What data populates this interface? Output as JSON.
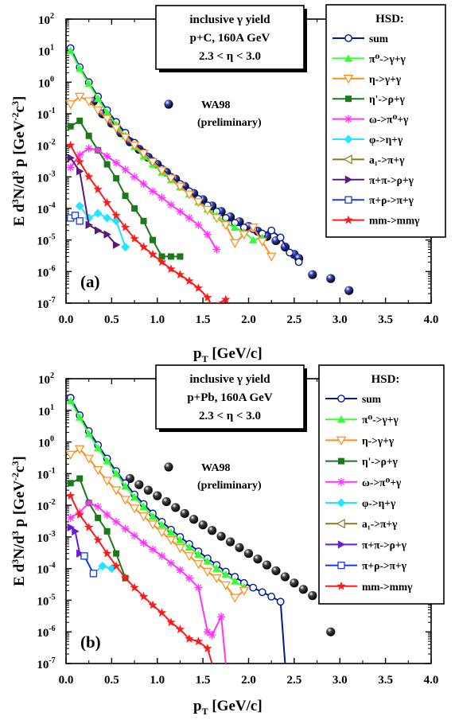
{
  "figure": {
    "x_axis": {
      "label_main": "p",
      "label_sub": "T",
      "label_unit": " [GeV/c]",
      "ticks": [
        "0.0",
        "0.5",
        "1.0",
        "1.5",
        "2.0",
        "2.5",
        "3.0",
        "3.5",
        "4.0"
      ]
    },
    "y_axis": {
      "label_left": "E d",
      "label_mid1": "N/d",
      "label_mid2": " p  [GeV",
      "label_end": "c",
      "sup_3": "3",
      "sup_m2": "-2",
      "sup_c3": "3"
    },
    "legend_title": "HSD:",
    "data_label": {
      "line1": "WA98",
      "line2": "(preliminary)"
    },
    "reaction_box_line1": "inclusive γ yield",
    "reaction_box_line3": "2.3 < η < 3.0"
  },
  "chart_data": [
    {
      "type": "line",
      "panel_label": "(a)",
      "reaction": "p+C,  160A GeV",
      "xlim": [
        0,
        4
      ],
      "ylim_log10": [
        -7,
        2
      ],
      "scatter_series": {
        "name": "WA98",
        "color": "#2a3490",
        "points": [
          [
            0.3,
            0.25
          ],
          [
            0.4,
            0.1
          ],
          [
            0.5,
            0.05
          ],
          [
            0.6,
            0.025
          ],
          [
            0.7,
            0.013
          ],
          [
            0.8,
            0.0075
          ],
          [
            0.9,
            0.0042
          ],
          [
            1.0,
            0.0025
          ],
          [
            1.1,
            0.0014
          ],
          [
            1.2,
            0.00085
          ],
          [
            1.3,
            0.0005
          ],
          [
            1.4,
            0.0003
          ],
          [
            1.5,
            0.00019
          ],
          [
            1.6,
            0.00012
          ],
          [
            1.7,
            8e-05
          ],
          [
            1.8,
            5.4e-05
          ],
          [
            1.9,
            3.8e-05
          ],
          [
            2.0,
            2.7e-05
          ],
          [
            2.1,
            1.9e-05
          ],
          [
            2.2,
            1.3e-05
          ],
          [
            2.3,
            9.5e-06
          ],
          [
            2.4,
            6e-06
          ],
          [
            2.5,
            3.5e-06
          ],
          [
            2.55,
            2.6e-06
          ],
          [
            2.7,
            8e-07
          ],
          [
            2.9,
            6e-07
          ],
          [
            3.1,
            2.5e-07
          ]
        ]
      },
      "series": [
        {
          "name": "sum",
          "color": "#001a99",
          "marker": "circle-open",
          "x": [
            0.05,
            0.15,
            0.25,
            0.35,
            0.45,
            0.55,
            0.65,
            0.75,
            0.85,
            0.95,
            1.05,
            1.15,
            1.25,
            1.35,
            1.45,
            1.55,
            1.65,
            1.75,
            1.85,
            1.95,
            2.05,
            2.15,
            2.25,
            2.35,
            2.45,
            2.55
          ],
          "y": [
            12,
            3.0,
            1.0,
            0.35,
            0.13,
            0.055,
            0.025,
            0.012,
            0.006,
            0.0032,
            0.0018,
            0.001,
            0.0006,
            0.00035,
            0.0002,
            0.000125,
            8e-05,
            5e-05,
            3.5e-05,
            2.5e-05,
            2.2e-05,
            1.6e-05,
            2e-05,
            1.2e-05,
            4e-06,
            2e-06
          ]
        },
        {
          "name": "π⁰->γ+γ",
          "color": "#33ff33",
          "marker": "triangle-up",
          "x": [
            0.05,
            0.15,
            0.25,
            0.35,
            0.45,
            0.55,
            0.65,
            0.75,
            0.85,
            0.95,
            1.05,
            1.15,
            1.25,
            1.35,
            1.45,
            1.55,
            1.65,
            1.75,
            1.85,
            1.95,
            2.05,
            2.15
          ],
          "y": [
            10,
            2.7,
            0.9,
            0.3,
            0.11,
            0.045,
            0.02,
            0.009,
            0.0045,
            0.0025,
            0.0014,
            0.0008,
            0.00048,
            0.00028,
            0.00016,
            9.5e-05,
            6e-05,
            3.5e-05,
            2.5e-05,
            1.8e-05,
            1e-05,
            1.2e-05
          ]
        },
        {
          "name": "η->γ+γ",
          "color": "#ff8c1a",
          "marker": "triangle-down-open",
          "x": [
            0.05,
            0.15,
            0.25,
            0.35,
            0.45,
            0.55,
            0.65,
            0.75,
            0.85,
            0.95,
            1.05,
            1.15,
            1.25,
            1.35,
            1.45,
            1.55,
            1.65,
            1.75,
            1.85,
            1.95,
            2.05,
            2.15,
            2.25
          ],
          "y": [
            0.2,
            0.35,
            0.25,
            0.13,
            0.07,
            0.035,
            0.018,
            0.01,
            0.0055,
            0.003,
            0.0016,
            0.0009,
            0.0005,
            0.00028,
            0.00016,
            9e-05,
            5e-05,
            3e-05,
            8e-06,
            1.5e-05,
            2.5e-05,
            9e-06,
            3e-06
          ]
        },
        {
          "name": "η'->ρ+γ",
          "color": "#1a7a1a",
          "marker": "square",
          "x": [
            0.05,
            0.15,
            0.25,
            0.35,
            0.45,
            0.55,
            0.65,
            0.75,
            0.85,
            0.95,
            1.05,
            1.15,
            1.25
          ],
          "y": [
            0.04,
            0.06,
            0.02,
            0.007,
            0.0025,
            0.0009,
            0.00025,
            0.0001,
            4e-05,
            1e-05,
            3e-06,
            3e-06,
            3e-06
          ]
        },
        {
          "name": "ω->π⁰+γ",
          "color": "#ff33ff",
          "marker": "asterisk",
          "x": [
            0.05,
            0.15,
            0.25,
            0.35,
            0.45,
            0.55,
            0.65,
            0.75,
            0.85,
            0.95,
            1.05,
            1.15,
            1.25,
            1.35,
            1.45,
            1.55,
            1.65
          ],
          "y": [
            0.002,
            0.005,
            0.008,
            0.007,
            0.0045,
            0.0028,
            0.0017,
            0.001,
            0.0006,
            0.00035,
            0.00022,
            0.00013,
            8e-05,
            5e-05,
            3e-05,
            1.5e-05,
            5e-06
          ]
        },
        {
          "name": "φ->η+γ",
          "color": "#22e5ff",
          "marker": "diamond",
          "x": [
            0.15,
            0.25,
            0.35,
            0.45,
            0.55,
            0.65
          ],
          "y": [
            0.00012,
            5e-05,
            7e-05,
            5e-05,
            4e-05,
            6e-06
          ]
        },
        {
          "name": "a₁->π+γ",
          "color": "#8c7a1a",
          "marker": "triangle-left-open",
          "x": [],
          "y": []
        },
        {
          "name": "π+π->ρ+γ",
          "color": "#5a1a7a",
          "marker": "triangle-right",
          "x": [
            0.05,
            0.15,
            0.25,
            0.35,
            0.45,
            0.55
          ],
          "y": [
            0.004,
            0.0015,
            3e-05,
            2e-05,
            1.5e-05,
            7e-06
          ]
        },
        {
          "name": "π+ρ->π+γ",
          "color": "#1a3ad9",
          "marker": "square-open",
          "x": [
            0.05,
            0.1,
            0.15
          ],
          "y": [
            5e-05,
            6e-05,
            4e-05
          ]
        },
        {
          "name": "mm->mmγ",
          "color": "#ff1a1a",
          "marker": "star",
          "x": [
            0.05,
            0.15,
            0.25,
            0.35,
            0.45,
            0.55,
            0.65,
            0.75,
            0.85,
            0.95,
            1.05,
            1.15,
            1.25,
            1.35,
            1.45,
            1.55,
            1.6,
            1.75
          ],
          "y": [
            0.01,
            0.003,
            0.001,
            0.0004,
            0.00015,
            6e-05,
            2.5e-05,
            1.1e-05,
            6e-06,
            3.5e-06,
            2e-06,
            1.2e-06,
            8e-07,
            5e-07,
            3e-07,
            1.5e-07,
            8e-08,
            1.3e-07
          ]
        }
      ]
    },
    {
      "type": "line",
      "panel_label": "(b)",
      "reaction": "p+Pb,  160A GeV",
      "xlim": [
        0,
        4
      ],
      "ylim_log10": [
        -7,
        2
      ],
      "scatter_series": {
        "name": "WA98",
        "color": "#222222",
        "points": [
          [
            0.7,
            0.07
          ],
          [
            0.8,
            0.045
          ],
          [
            0.9,
            0.03
          ],
          [
            1.0,
            0.02
          ],
          [
            1.1,
            0.013
          ],
          [
            1.2,
            0.0085
          ],
          [
            1.3,
            0.0055
          ],
          [
            1.4,
            0.0036
          ],
          [
            1.5,
            0.0024
          ],
          [
            1.6,
            0.0016
          ],
          [
            1.7,
            0.00105
          ],
          [
            1.8,
            0.0007
          ],
          [
            1.9,
            0.00046
          ],
          [
            2.0,
            0.0003
          ],
          [
            2.1,
            0.0002
          ],
          [
            2.2,
            0.00013
          ],
          [
            2.3,
            8.5e-05
          ],
          [
            2.4,
            5.5e-05
          ],
          [
            2.5,
            3.5e-05
          ],
          [
            2.6,
            2.2e-05
          ],
          [
            2.7,
            1.4e-05
          ],
          [
            2.9,
            1e-06
          ]
        ]
      },
      "series": [
        {
          "name": "sum",
          "color": "#001a99",
          "marker": "circle-open",
          "x": [
            0.05,
            0.15,
            0.25,
            0.35,
            0.45,
            0.55,
            0.65,
            0.75,
            0.85,
            0.95,
            1.05,
            1.15,
            1.25,
            1.35,
            1.45,
            1.55,
            1.65,
            1.75,
            1.85,
            1.95,
            2.05,
            2.15,
            2.25,
            2.35,
            2.4
          ],
          "y": [
            25,
            7.0,
            2.2,
            0.8,
            0.3,
            0.12,
            0.05,
            0.022,
            0.011,
            0.0055,
            0.003,
            0.0017,
            0.001,
            0.0006,
            0.00035,
            0.00021,
            0.00013,
            8e-05,
            5.5e-05,
            3.5e-05,
            2.5e-05,
            1.8e-05,
            1.3e-05,
            9e-06,
            1e-07
          ]
        },
        {
          "name": "π⁰->γ+γ",
          "color": "#33ff33",
          "marker": "triangle-up",
          "x": [
            0.05,
            0.15,
            0.25,
            0.35,
            0.45,
            0.55,
            0.65,
            0.75,
            0.85,
            0.95,
            1.05,
            1.15,
            1.25,
            1.35,
            1.45,
            1.55,
            1.65,
            1.75,
            1.85,
            1.95
          ],
          "y": [
            20,
            6.0,
            1.8,
            0.65,
            0.25,
            0.1,
            0.04,
            0.018,
            0.009,
            0.0045,
            0.0024,
            0.0014,
            0.0008,
            0.00047,
            0.00028,
            0.00017,
            0.0001,
            6.5e-05,
            4e-05,
            2.6e-05
          ]
        },
        {
          "name": "η->γ+γ",
          "color": "#ff8c1a",
          "marker": "triangle-down-open",
          "x": [
            0.05,
            0.15,
            0.25,
            0.35,
            0.45,
            0.55,
            0.65,
            0.75,
            0.85,
            0.95,
            1.05,
            1.15,
            1.25,
            1.35,
            1.45,
            1.55,
            1.65,
            1.75,
            1.85,
            1.95
          ],
          "y": [
            0.4,
            0.6,
            0.3,
            0.13,
            0.06,
            0.03,
            0.015,
            0.008,
            0.0045,
            0.0025,
            0.0014,
            0.0008,
            0.00045,
            0.00025,
            0.00014,
            8e-05,
            5e-05,
            3e-05,
            1.2e-05,
            2e-05
          ]
        },
        {
          "name": "η'->ρ+γ",
          "color": "#1a7a1a",
          "marker": "square",
          "x": [
            0.05,
            0.15,
            0.25,
            0.35,
            0.45,
            0.55,
            0.65
          ],
          "y": [
            0.05,
            0.07,
            0.012,
            0.004,
            0.0015,
            0.0003,
            5e-05
          ]
        },
        {
          "name": "ω->π⁰+γ",
          "color": "#ff33ff",
          "marker": "asterisk",
          "x": [
            0.05,
            0.15,
            0.25,
            0.35,
            0.45,
            0.55,
            0.65,
            0.75,
            0.85,
            0.95,
            1.05,
            1.15,
            1.25,
            1.35,
            1.45,
            1.55,
            1.6,
            1.7,
            1.75
          ],
          "y": [
            0.004,
            0.006,
            0.012,
            0.009,
            0.005,
            0.003,
            0.0018,
            0.0011,
            0.00065,
            0.0004,
            0.00025,
            0.00015,
            9e-05,
            5e-05,
            2.5e-05,
            1e-06,
            8e-07,
            3e-06,
            1e-07
          ]
        },
        {
          "name": "φ->η+γ",
          "color": "#22e5ff",
          "marker": "diamond",
          "x": [
            0.2,
            0.3,
            0.4,
            0.5
          ],
          "y": [
            0.00025,
            7e-05,
            0.00012,
            0.0001
          ]
        },
        {
          "name": "a₁->π+γ",
          "color": "#8c7a1a",
          "marker": "triangle-left-open",
          "x": [],
          "y": []
        },
        {
          "name": "π+π->ρ+γ",
          "color": "#6a1ad9",
          "marker": "triangle-right",
          "x": [
            0.05,
            0.1,
            0.15
          ],
          "y": [
            0.002,
            0.0015,
            0.0003
          ]
        },
        {
          "name": "π+ρ->π+γ",
          "color": "#1a3ad9",
          "marker": "square-open",
          "x": [
            0.2,
            0.3
          ],
          "y": [
            0.00025,
            7e-05
          ]
        },
        {
          "name": "mm->mmγ",
          "color": "#ff1a1a",
          "marker": "star",
          "x": [
            0.05,
            0.15,
            0.25,
            0.35,
            0.45,
            0.55,
            0.65,
            0.75,
            0.85,
            0.95,
            1.05,
            1.15,
            1.25,
            1.35,
            1.45,
            1.55,
            1.6
          ],
          "y": [
            0.02,
            0.005,
            0.002,
            0.0008,
            0.0003,
            0.00012,
            5e-05,
            2.5e-05,
            1.3e-05,
            7e-06,
            4e-06,
            2e-06,
            1.2e-06,
            6e-07,
            5e-07,
            3e-07,
            1e-07
          ]
        }
      ]
    }
  ]
}
